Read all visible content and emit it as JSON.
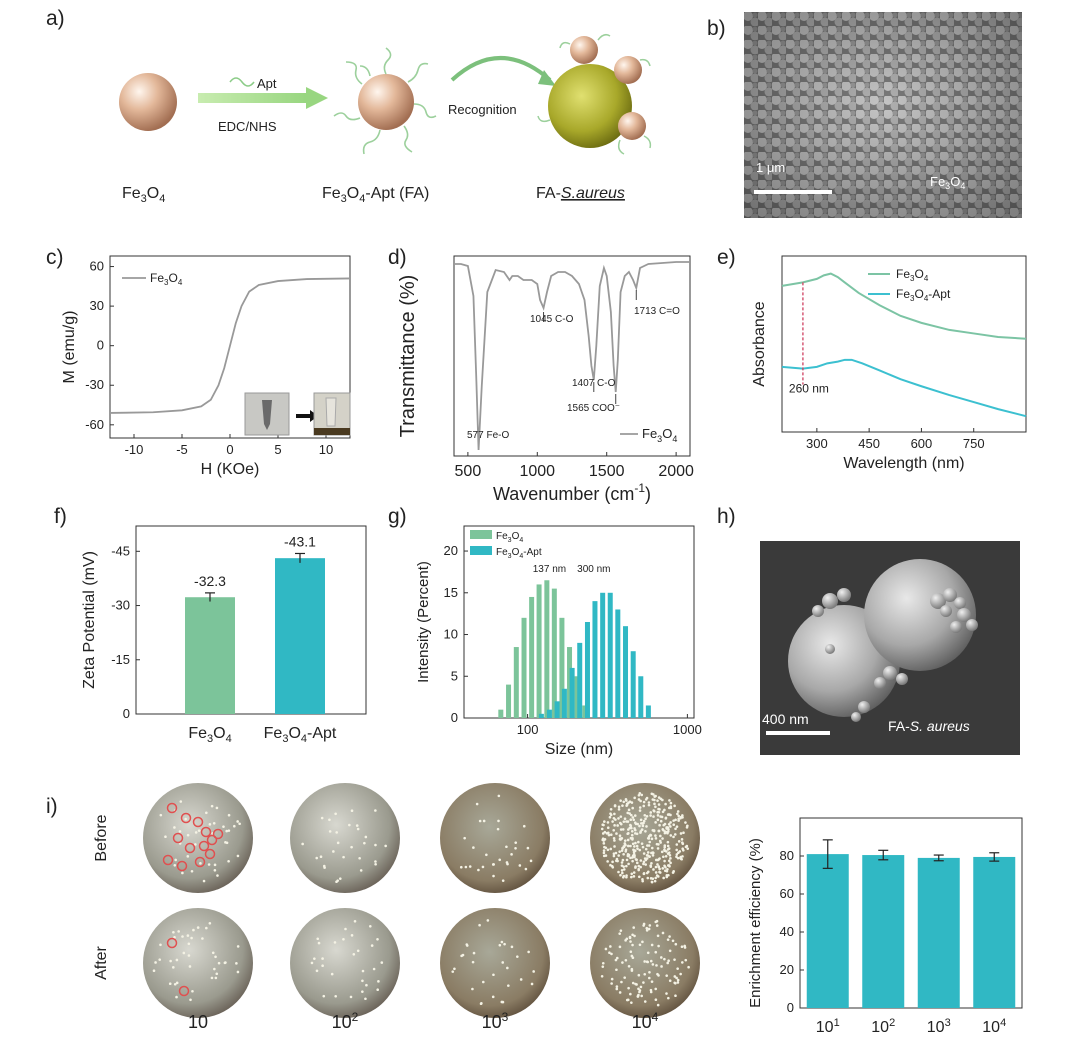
{
  "panel_labels": {
    "a": "a)",
    "b": "b)",
    "c": "c)",
    "d": "d)",
    "e": "e)",
    "f": "f)",
    "g": "g)",
    "h": "h)",
    "i": "i)"
  },
  "panel_a": {
    "apt_label": "Apt",
    "reagent_label": "EDC/NHS",
    "recognition_label": "Recognition",
    "fe3o4": {
      "base": "Fe",
      "sub1": "3",
      "mid": "O",
      "sub2": "4"
    },
    "fa": {
      "base": "Fe",
      "sub1": "3",
      "mid": "O",
      "sub2": "4",
      "tail": "-Apt (FA)"
    },
    "fa_saureus": {
      "prefix": "FA-",
      "italic": "S.aureus"
    },
    "colors": {
      "particle": "#e0b89c",
      "arrow": "#a8d890",
      "bacterium": "#9a9a20"
    }
  },
  "panel_b": {
    "scale_label": "1 μm",
    "sample": {
      "base": "Fe",
      "sub1": "3",
      "mid": "O",
      "sub2": "4"
    }
  },
  "panel_h": {
    "scale_label": "400 nm",
    "sample_prefix": "FA-",
    "sample_italic": "S. aureus"
  },
  "chart_data": [
    {
      "id": "c",
      "type": "line",
      "xlabel": "H (KOe)",
      "ylabel": "M (emu/g)",
      "xlim": [
        -12.5,
        12.5
      ],
      "ylim": [
        -70,
        68
      ],
      "x_ticks": [
        -10,
        -5,
        0,
        5,
        10
      ],
      "y_ticks": [
        -60,
        -30,
        0,
        30,
        60
      ],
      "legend": {
        "base": "Fe",
        "sub1": "3",
        "mid": "O",
        "sub2": "4"
      },
      "series": [
        {
          "x": [
            -12.5,
            -8,
            -5,
            -3,
            -2,
            -1.2,
            -0.6,
            0,
            0.6,
            1.2,
            2,
            3,
            5,
            8,
            12.5
          ],
          "y": [
            -51,
            -50.5,
            -49,
            -46,
            -41,
            -30,
            -17,
            0,
            17,
            30,
            41,
            46,
            49,
            50.5,
            51
          ]
        }
      ]
    },
    {
      "id": "d",
      "type": "line",
      "xlabel": "Wavenumber (cm",
      "xlabel_sup": "-1",
      "xlabel_end": ")",
      "ylabel": "Transmittance (%)",
      "xlim": [
        400,
        2100
      ],
      "x_ticks": [
        500,
        1000,
        1500,
        2000
      ],
      "legend": {
        "base": "Fe",
        "sub1": "3",
        "mid": "O",
        "sub2": "4"
      },
      "annotations": [
        {
          "x": 577,
          "text": "577 Fe-O"
        },
        {
          "x": 1045,
          "text": "1045 C-O"
        },
        {
          "x": 1407,
          "text": "1407 C-O"
        },
        {
          "x": 1565,
          "text": "1565 COO⁻"
        },
        {
          "x": 1713,
          "text": "1713 C=O"
        }
      ],
      "series": [
        {
          "x": [
            400,
            450,
            500,
            540,
            560,
            577,
            600,
            640,
            700,
            760,
            800,
            820,
            860,
            900,
            960,
            1000,
            1020,
            1045,
            1070,
            1100,
            1150,
            1200,
            1250,
            1300,
            1340,
            1370,
            1390,
            1407,
            1425,
            1450,
            1480,
            1500,
            1530,
            1550,
            1565,
            1580,
            1600,
            1630,
            1660,
            1690,
            1713,
            1740,
            1800,
            1900,
            2000,
            2100
          ],
          "y": [
            0.96,
            0.96,
            0.95,
            0.8,
            0.4,
            0.03,
            0.35,
            0.82,
            0.93,
            0.92,
            0.88,
            0.9,
            0.9,
            0.88,
            0.88,
            0.86,
            0.78,
            0.74,
            0.82,
            0.9,
            0.92,
            0.92,
            0.9,
            0.86,
            0.78,
            0.6,
            0.45,
            0.38,
            0.55,
            0.85,
            0.94,
            0.9,
            0.72,
            0.45,
            0.32,
            0.48,
            0.82,
            0.9,
            0.92,
            0.88,
            0.84,
            0.94,
            0.96,
            0.965,
            0.97,
            0.97
          ]
        }
      ]
    },
    {
      "id": "e",
      "type": "line",
      "xlabel": "Wavelength (nm)",
      "ylabel": "Absorbance",
      "xlim": [
        200,
        900
      ],
      "x_ticks": [
        300,
        450,
        600,
        750
      ],
      "marker": {
        "x": 260,
        "text": "260 nm"
      },
      "series": [
        {
          "name": {
            "base": "Fe",
            "sub1": "3",
            "mid": "O",
            "sub2": "4"
          },
          "color": "#7cc4a4",
          "x": [
            200,
            260,
            300,
            320,
            340,
            360,
            380,
            420,
            480,
            540,
            600,
            680,
            750,
            820,
            900
          ],
          "y": [
            0.83,
            0.85,
            0.87,
            0.89,
            0.9,
            0.88,
            0.85,
            0.79,
            0.72,
            0.66,
            0.62,
            0.58,
            0.56,
            0.54,
            0.53
          ]
        },
        {
          "name": {
            "base": "Fe",
            "sub1": "3",
            "mid": "O",
            "sub2": "4",
            "tail": "-Apt"
          },
          "color": "#3cc0d0",
          "x": [
            200,
            260,
            300,
            330,
            360,
            380,
            400,
            430,
            480,
            540,
            600,
            680,
            750,
            820,
            900
          ],
          "y": [
            0.37,
            0.36,
            0.37,
            0.39,
            0.4,
            0.41,
            0.41,
            0.39,
            0.35,
            0.3,
            0.26,
            0.21,
            0.17,
            0.13,
            0.09
          ]
        }
      ]
    },
    {
      "id": "f",
      "type": "bar",
      "ylabel": "Zeta Potential (mV)",
      "ylim": [
        0,
        -52
      ],
      "y_ticks": [
        0,
        -15,
        -30,
        -45
      ],
      "categories": [
        {
          "base": "Fe",
          "sub1": "3",
          "mid": "O",
          "sub2": "4"
        },
        {
          "base": "Fe",
          "sub1": "3",
          "mid": "O",
          "sub2": "4",
          "tail": "-Apt"
        }
      ],
      "values": [
        -32.3,
        -43.1
      ],
      "errors": [
        1.2,
        1.3
      ],
      "value_labels": [
        "-32.3",
        "-43.1"
      ],
      "colors": [
        "#7cc49a",
        "#30b8c4"
      ]
    },
    {
      "id": "g",
      "type": "bar",
      "xlabel": "Size (nm)",
      "ylabel": "Intensity (Percent)",
      "xscale": "log",
      "xlim": [
        40,
        1100
      ],
      "ylim": [
        0,
        23
      ],
      "x_ticks": [
        100,
        1000
      ],
      "y_ticks": [
        0,
        5,
        10,
        15,
        20
      ],
      "peak_labels": [
        {
          "x": 137,
          "text": "137 nm"
        },
        {
          "x": 300,
          "text": "300 nm"
        }
      ],
      "series": [
        {
          "name": {
            "base": "Fe",
            "sub1": "3",
            "mid": "O",
            "sub2": "4"
          },
          "color": "#7cc49a",
          "x": [
            68,
            76,
            85,
            95,
            106,
            118,
            132,
            147,
            164,
            183,
            204,
            228
          ],
          "y": [
            1,
            4,
            8.5,
            12,
            14.5,
            16,
            16.5,
            15.5,
            12,
            8.5,
            5,
            1.5
          ]
        },
        {
          "name": {
            "base": "Fe",
            "sub1": "3",
            "mid": "O",
            "sub2": "4",
            "tail": "-Apt"
          },
          "color": "#30b8c4",
          "x": [
            122,
            137,
            153,
            170,
            190,
            212,
            237,
            264,
            295,
            329,
            367,
            410,
            458,
            511,
            570
          ],
          "y": [
            0.5,
            1,
            2,
            3.5,
            6,
            9,
            11.5,
            14,
            15,
            15,
            13,
            11,
            8,
            5,
            1.5
          ]
        }
      ]
    },
    {
      "id": "i",
      "type": "bar",
      "ylabel": "Enrichment efficiency (%)",
      "ylim": [
        0,
        100
      ],
      "y_ticks": [
        0,
        20,
        40,
        60,
        80
      ],
      "categories": [
        {
          "base": "10",
          "sup": "1"
        },
        {
          "base": "10",
          "sup": "2"
        },
        {
          "base": "10",
          "sup": "3"
        },
        {
          "base": "10",
          "sup": "4"
        }
      ],
      "values": [
        81,
        80.5,
        79,
        79.5
      ],
      "errors": [
        7.5,
        2.5,
        1.5,
        2.2
      ],
      "color": "#30b8c4"
    }
  ],
  "panel_i": {
    "row_labels": [
      "Before",
      "After"
    ],
    "columns": [
      {
        "base": "10",
        "sup": ""
      },
      {
        "base": "10",
        "sup": "2"
      },
      {
        "base": "10",
        "sup": "3"
      },
      {
        "base": "10",
        "sup": "4"
      }
    ],
    "plate_color": "#a8a8a0",
    "highlight_color": "#e05050"
  }
}
